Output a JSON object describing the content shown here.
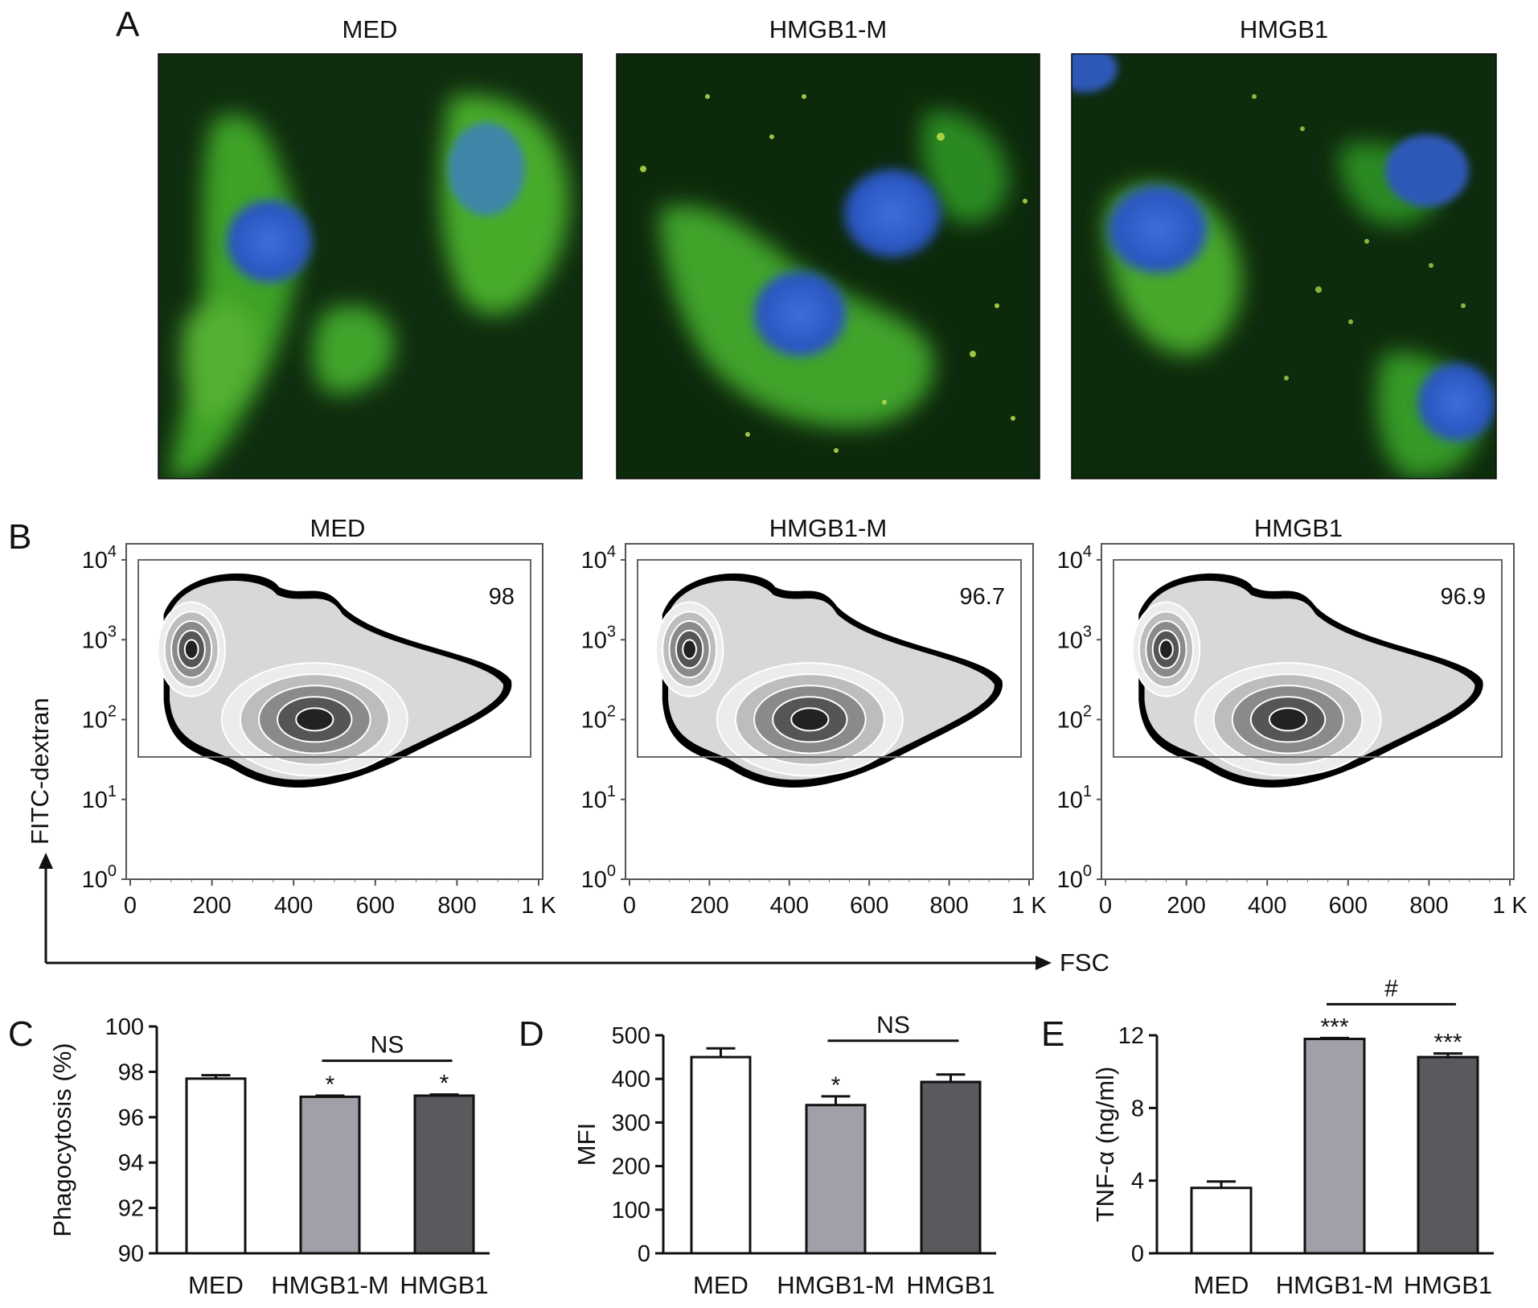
{
  "panels": {
    "A": {
      "letter": "A",
      "images": [
        {
          "title": "MED"
        },
        {
          "title": "HMGB1-M"
        },
        {
          "title": "HMGB1"
        }
      ]
    },
    "B": {
      "letter": "B",
      "ylabel": "FITC-dextran",
      "xlabel": "FSC",
      "y_ticks": [
        "10",
        "10",
        "10",
        "10",
        "10"
      ],
      "y_exps": [
        "0",
        "1",
        "2",
        "3",
        "4"
      ],
      "x_ticks": [
        "0",
        "200",
        "400",
        "600",
        "800",
        "1 K"
      ],
      "plots": [
        {
          "title": "MED",
          "gate_value": "98"
        },
        {
          "title": "HMGB1-M",
          "gate_value": "96.7"
        },
        {
          "title": "HMGB1",
          "gate_value": "96.9"
        }
      ]
    }
  },
  "colors": {
    "bar_med": "#ffffff",
    "bar_hmgb1m": "#a0a0a8",
    "bar_hmgb1": "#5a5a5e",
    "fluor_green": "#2f9a24",
    "nucleus_blue": "#2a58c8"
  },
  "chart_data": [
    {
      "panel": "C",
      "type": "bar",
      "categories": [
        "MED",
        "HMGB1-M",
        "HMGB1"
      ],
      "values": [
        97.7,
        96.9,
        96.95
      ],
      "errors": [
        0.15,
        0.05,
        0.05
      ],
      "ylabel": "Phagocytosis (%)",
      "ylim": [
        90,
        100
      ],
      "yticks": [
        90,
        92,
        94,
        96,
        98,
        100
      ],
      "bar_labels": [
        "",
        "*",
        "*"
      ],
      "comparison": {
        "from": 1,
        "to": 2,
        "label": "NS"
      }
    },
    {
      "panel": "D",
      "type": "bar",
      "categories": [
        "MED",
        "HMGB1-M",
        "HMGB1"
      ],
      "values": [
        450,
        340,
        393
      ],
      "errors": [
        20,
        20,
        17
      ],
      "ylabel": "MFI",
      "ylim": [
        0,
        500
      ],
      "yticks": [
        0,
        100,
        200,
        300,
        400,
        500
      ],
      "bar_labels": [
        "",
        "*",
        ""
      ],
      "comparison": {
        "from": 1,
        "to": 2,
        "label": "NS"
      }
    },
    {
      "panel": "E",
      "type": "bar",
      "categories": [
        "MED",
        "HMGB1-M",
        "HMGB1"
      ],
      "values": [
        3.6,
        11.8,
        10.8
      ],
      "errors": [
        0.35,
        0.05,
        0.2
      ],
      "ylabel": "TNF-α (ng/ml)",
      "ylim": [
        0,
        12
      ],
      "yticks": [
        0,
        4,
        8,
        12
      ],
      "bar_labels": [
        "",
        "***",
        "***"
      ],
      "comparison": {
        "from": 1,
        "to": 2,
        "label": "#"
      }
    }
  ]
}
